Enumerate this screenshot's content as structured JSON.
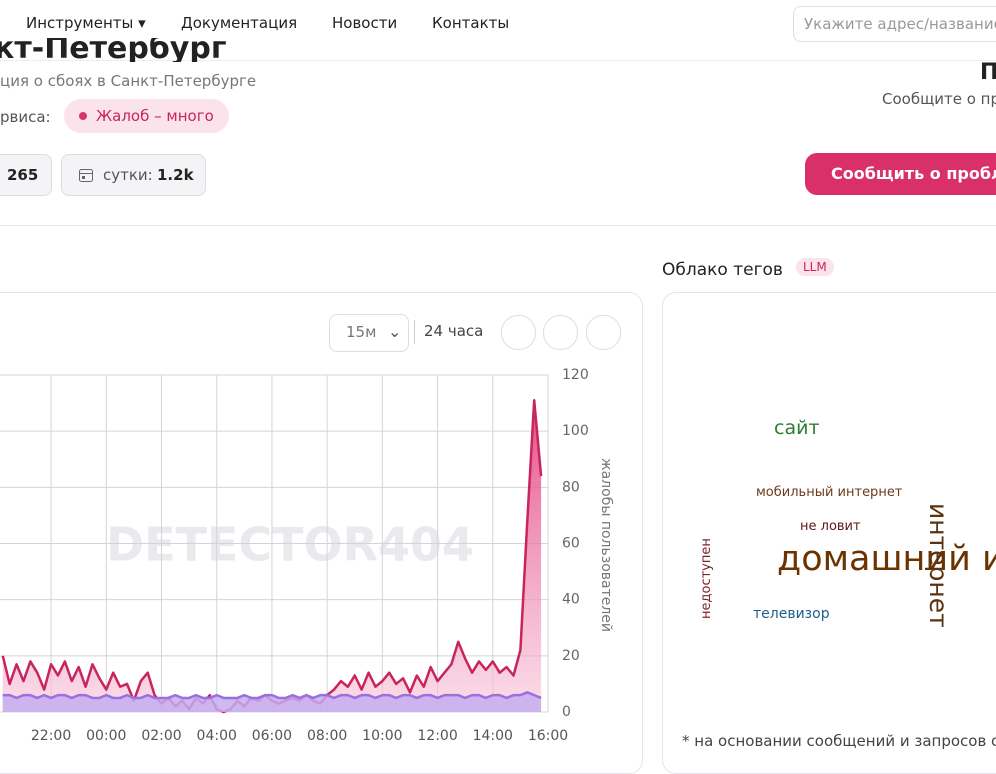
{
  "nav": {
    "items": [
      "Инструменты ▾",
      "Документация",
      "Новости",
      "Контакты"
    ],
    "search_placeholder": "Укажите адрес/название"
  },
  "header": {
    "title": "кт-Петербург",
    "subtitle": "ция о сбоях в Санкт-Петербурге",
    "status_label": "рвиса:",
    "status_badge": "Жалоб – много",
    "stat_hour": "265",
    "stat_day_label": "сутки:",
    "stat_day_value": "1.2k",
    "right_title": "П",
    "right_subtitle": "Сообщите о пр",
    "report_button": "Сообщить о проблем"
  },
  "chart_controls": {
    "interval": "15м",
    "range": "24 часа"
  },
  "chart_data": {
    "type": "line",
    "y_label": "жалобы пользователей",
    "watermark": "DETECTOR404",
    "x": [
      20.25,
      20.5,
      20.75,
      21,
      21.25,
      21.5,
      21.75,
      22,
      22.25,
      22.5,
      22.75,
      23,
      23.25,
      23.5,
      23.75,
      24,
      24.25,
      24.5,
      24.75,
      25,
      25.25,
      25.5,
      25.75,
      26,
      26.25,
      26.5,
      26.75,
      27,
      27.25,
      27.5,
      27.75,
      28,
      28.25,
      28.5,
      28.75,
      29,
      29.25,
      29.5,
      29.75,
      30,
      30.25,
      30.5,
      30.75,
      31,
      31.25,
      31.5,
      31.75,
      32,
      32.25,
      32.5,
      32.75,
      33,
      33.25,
      33.5,
      33.75,
      34,
      34.25,
      34.5,
      34.75,
      35,
      35.25,
      35.5,
      35.75,
      36,
      36.25,
      36.5,
      36.75,
      37,
      37.25,
      37.5,
      37.75,
      38,
      38.25,
      38.5,
      38.75,
      39,
      39.25,
      39.5,
      39.75
    ],
    "series": [
      {
        "color": "#c8245e",
        "fill": "#f4aac7",
        "values": [
          20,
          10,
          17,
          11,
          18,
          14,
          8,
          17,
          13,
          18,
          11,
          16,
          9,
          17,
          12,
          8,
          14,
          9,
          10,
          4,
          11,
          14,
          6,
          3,
          5,
          2,
          4,
          1,
          5,
          3,
          6,
          1,
          0,
          1,
          4,
          2,
          5,
          4,
          6,
          4,
          3,
          4,
          5,
          4,
          6,
          4,
          3,
          6,
          8,
          11,
          9,
          13,
          8,
          14,
          9,
          11,
          14,
          10,
          12,
          7,
          13,
          9,
          16,
          11,
          14,
          17,
          25,
          19,
          14,
          18,
          15,
          18,
          14,
          16,
          13,
          22,
          68,
          111,
          84
        ]
      },
      {
        "color": "#9a6fe0",
        "fill": "#c6adf0",
        "values": [
          6,
          6,
          5,
          6,
          6,
          5,
          6,
          5,
          6,
          6,
          5,
          6,
          6,
          5,
          5,
          6,
          5,
          5,
          6,
          5,
          5,
          6,
          5,
          5,
          5,
          6,
          5,
          5,
          6,
          5,
          5,
          6,
          5,
          5,
          5,
          6,
          5,
          5,
          6,
          6,
          5,
          5,
          6,
          5,
          6,
          5,
          6,
          6,
          5,
          6,
          6,
          5,
          6,
          6,
          5,
          6,
          6,
          5,
          6,
          6,
          5,
          6,
          6,
          5,
          6,
          6,
          6,
          5,
          6,
          6,
          5,
          6,
          6,
          5,
          6,
          6,
          7,
          6,
          5
        ]
      }
    ],
    "xlim": [
      20.15,
      40
    ],
    "ylim": [
      0,
      120
    ],
    "xticks": [
      {
        "value": 22,
        "label": "22:00"
      },
      {
        "value": 24,
        "label": "00:00"
      },
      {
        "value": 26,
        "label": "02:00"
      },
      {
        "value": 28,
        "label": "04:00"
      },
      {
        "value": 30,
        "label": "06:00"
      },
      {
        "value": 32,
        "label": "08:00"
      },
      {
        "value": 34,
        "label": "10:00"
      },
      {
        "value": 36,
        "label": "12:00"
      },
      {
        "value": 38,
        "label": "14:00"
      },
      {
        "value": 40,
        "label": "16:00"
      }
    ],
    "yticks": [
      0,
      20,
      40,
      60,
      80,
      100,
      120
    ],
    "grid": true
  },
  "tag_cloud": {
    "title": "Облако тегов",
    "badge": "LLM",
    "words": [
      {
        "text": "сайт",
        "color": "#2e7d32"
      },
      {
        "text": "мобильный интернет",
        "color": "#6d3a1a"
      },
      {
        "text": "не ловит",
        "color": "#5a1a1a"
      },
      {
        "text": "домашний интернет",
        "color": "#6b3300"
      },
      {
        "text": "интернет",
        "color": "#5a3410"
      },
      {
        "text": "недоступен",
        "color": "#7a1f2b"
      },
      {
        "text": "телевизор",
        "color": "#1d5f8a"
      }
    ],
    "footnote": "*  на основании сообщений и запросов с"
  }
}
